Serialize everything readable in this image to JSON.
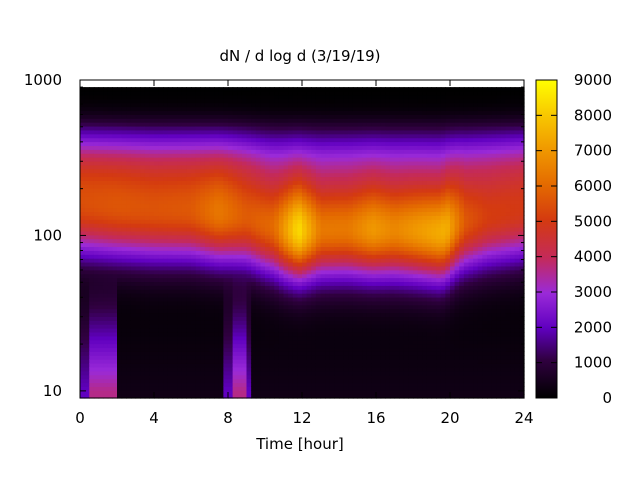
{
  "chart_data": {
    "type": "heatmap",
    "title": "dN / d log d (3/19/19)",
    "xlabel": "Time [hour]",
    "ylabel": "",
    "x_ticks": [
      "0",
      "4",
      "8",
      "12",
      "16",
      "20",
      "24"
    ],
    "x_tick_values": [
      0,
      4,
      8,
      12,
      16,
      20,
      24
    ],
    "xlim": [
      0,
      24
    ],
    "y_scale": "log",
    "y_ticks": [
      "10",
      "100",
      "1000"
    ],
    "y_tick_values": [
      10,
      100,
      1000
    ],
    "ylim": [
      9,
      1000
    ],
    "y_data_top": 900,
    "colorbar": {
      "range": [
        0,
        9000
      ],
      "ticks": [
        "0",
        "1000",
        "2000",
        "3000",
        "4000",
        "5000",
        "6000",
        "7000",
        "8000",
        "9000"
      ],
      "tick_values": [
        0,
        1000,
        2000,
        3000,
        4000,
        5000,
        6000,
        7000,
        8000,
        9000
      ],
      "palette": "black-purple-red-orange-yellow (gnuplot)"
    },
    "profile": {
      "description_units": "diameter (log) and dN/dlogd",
      "peak_diameter": {
        "t": [
          0,
          2,
          4,
          6,
          8,
          9,
          10,
          11,
          12,
          14,
          16,
          18,
          19.5,
          20.5,
          22,
          24
        ],
        "d": [
          150,
          145,
          140,
          140,
          135,
          130,
          118,
          110,
          108,
          110,
          110,
          108,
          105,
          120,
          130,
          140
        ]
      },
      "peak_amplitude": {
        "t": [
          0,
          2,
          4,
          6,
          7.5,
          9,
          10.5,
          11.8,
          13,
          14.5,
          15.8,
          17,
          18.5,
          19.8,
          20.8,
          22,
          24
        ],
        "v": [
          5200,
          5400,
          5400,
          5500,
          6200,
          5600,
          6000,
          8400,
          6300,
          6300,
          7000,
          6600,
          7100,
          7500,
          5600,
          5000,
          4800
        ]
      },
      "small_mode_low_concentration_hours": [
        [
          2.0,
          7.8
        ],
        [
          9.2,
          24
        ]
      ],
      "small_mode_enhanced_hours": [
        [
          0.6,
          1.9
        ],
        [
          8.2,
          9.0
        ]
      ]
    }
  }
}
